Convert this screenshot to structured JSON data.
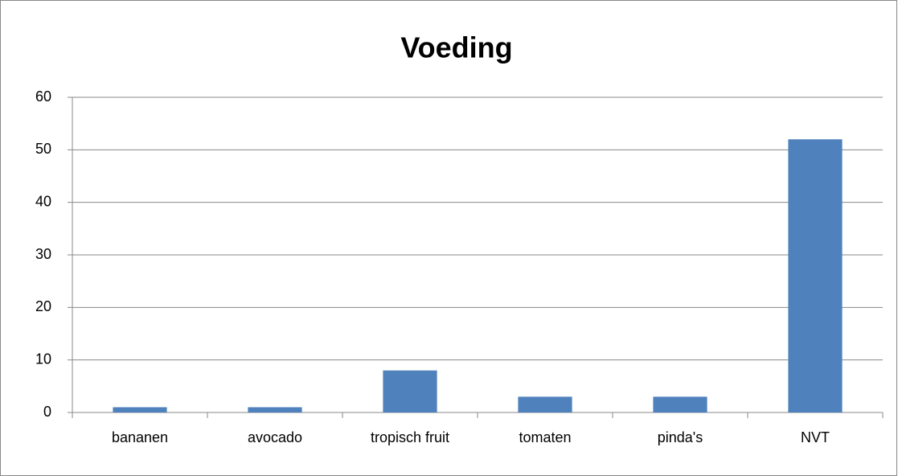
{
  "chart_data": {
    "type": "bar",
    "title": "Voeding",
    "categories": [
      "bananen",
      "avocado",
      "tropisch fruit",
      "tomaten",
      "pinda's",
      "NVT"
    ],
    "values": [
      1,
      1,
      8,
      3,
      3,
      52
    ],
    "color": "#4f81bd",
    "ylim": [
      0,
      60
    ],
    "yticks": [
      0,
      10,
      20,
      30,
      40,
      50,
      60
    ],
    "grid": true
  }
}
